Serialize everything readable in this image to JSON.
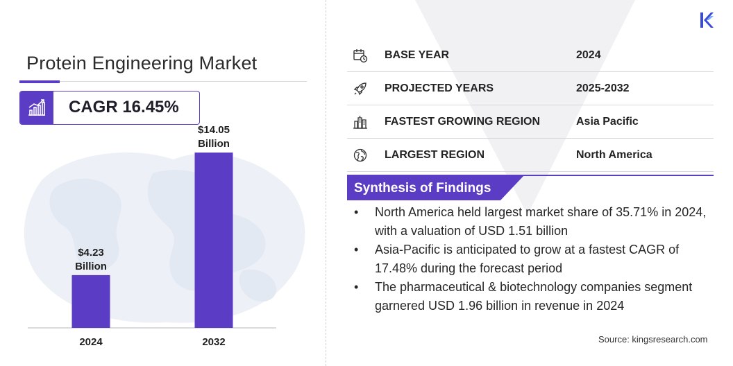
{
  "title": "Protein Engineering Market",
  "cagr": {
    "text": "CAGR 16.45%"
  },
  "info_rows": [
    {
      "icon": "calendar-icon",
      "label": "BASE YEAR",
      "value": "2024"
    },
    {
      "icon": "rocket-icon",
      "label": "PROJECTED YEARS",
      "value": "2025-2032"
    },
    {
      "icon": "city-icon",
      "label": "FASTEST GROWING REGION",
      "value": "Asia Pacific"
    },
    {
      "icon": "globe-icon",
      "label": "LARGEST REGION",
      "value": "North America"
    }
  ],
  "findings": {
    "title": "Synthesis of Findings",
    "bullet": "•",
    "items": [
      "North America held largest market share of 35.71% in 2024, with a valuation of USD 1.51 billion",
      "Asia-Pacific is anticipated to grow at a fastest CAGR of 17.48% during the forecast period",
      "The pharmaceutical & biotechnology companies segment garnered USD 1.96 billion in revenue in 2024"
    ]
  },
  "source": "Source:  kingsresearch.com",
  "colors": {
    "accent": "#5b3cc4",
    "bar": "#5b3cc4",
    "text": "#222222"
  },
  "chart_data": {
    "type": "bar",
    "categories": [
      "2024",
      "2032"
    ],
    "values": [
      4.23,
      14.05
    ],
    "data_labels": [
      [
        "$4.23",
        "Billion"
      ],
      [
        "$14.05",
        "Billion"
      ]
    ],
    "title": "",
    "xlabel": "",
    "ylabel": "",
    "ylim": [
      0,
      15
    ],
    "grid": false,
    "legend": "none"
  }
}
